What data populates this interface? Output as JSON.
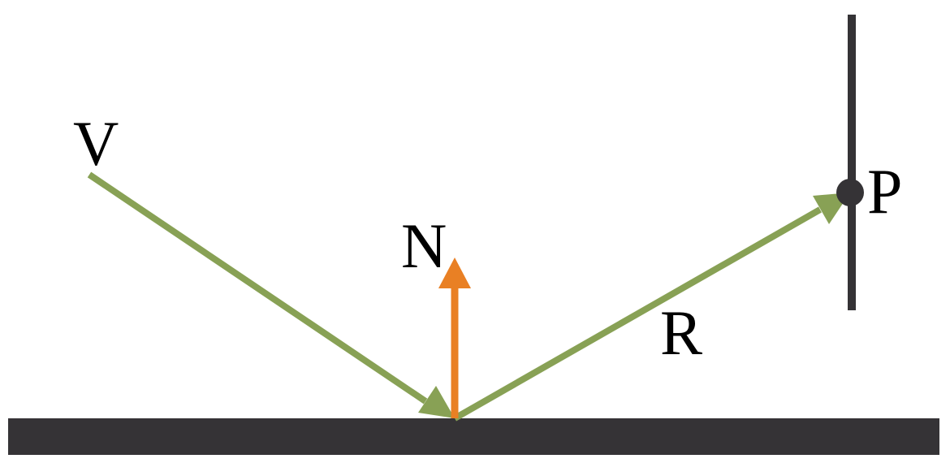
{
  "labels": {
    "view": "V",
    "normal": "N",
    "reflected": "R",
    "point": "P"
  },
  "colors": {
    "ray": "#88a155",
    "normal": "#e98024",
    "surface": "#353336",
    "screen": "#353336",
    "text": "#000000"
  }
}
